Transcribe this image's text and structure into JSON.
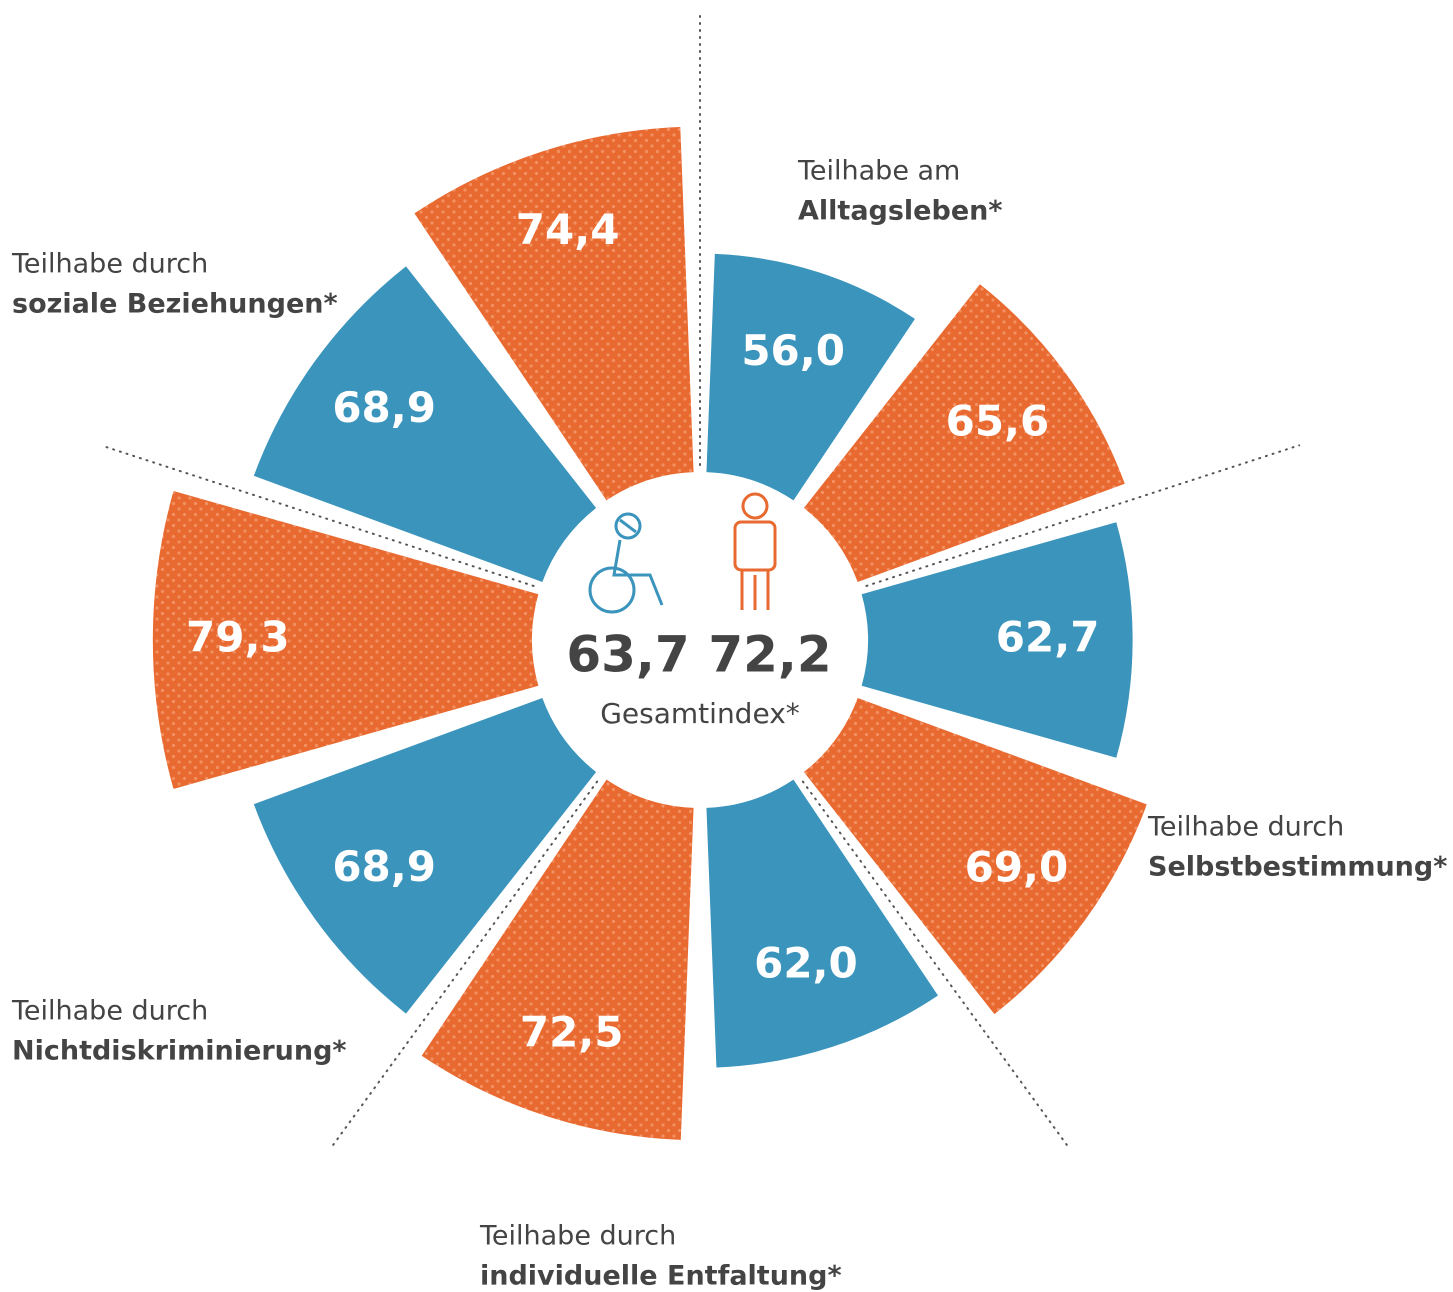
{
  "chart_data": {
    "type": "polar-bar",
    "categories": [
      [
        "Teilhabe am",
        "Alltagsleben*"
      ],
      [
        "Teilhabe durch",
        "Selbstbestimmung*"
      ],
      [
        "Teilhabe durch",
        "individuelle Entfaltung*"
      ],
      [
        "Teilhabe durch",
        "Nichtdiskriminierung*"
      ],
      [
        "Teilhabe durch",
        "soziale Beziehungen*"
      ]
    ],
    "series": [
      {
        "color": "#3a94bc",
        "values": [
          56.0,
          62.7,
          62.0,
          68.9,
          68.9
        ],
        "value_labels": [
          "56,0",
          "62,7",
          "62,0",
          "68,9",
          "68,9"
        ]
      },
      {
        "color": "#e86a30",
        "values": [
          65.6,
          69.0,
          72.5,
          79.3,
          74.4
        ],
        "value_labels": [
          "65,6",
          "69,0",
          "72,5",
          "79,3",
          "74,4"
        ]
      }
    ],
    "overall": {
      "label": "Gesamtindex*",
      "values": [
        63.7,
        72.2
      ],
      "value_labels": [
        "63,7",
        "72,2"
      ]
    },
    "ylim": [
      0,
      100
    ]
  }
}
